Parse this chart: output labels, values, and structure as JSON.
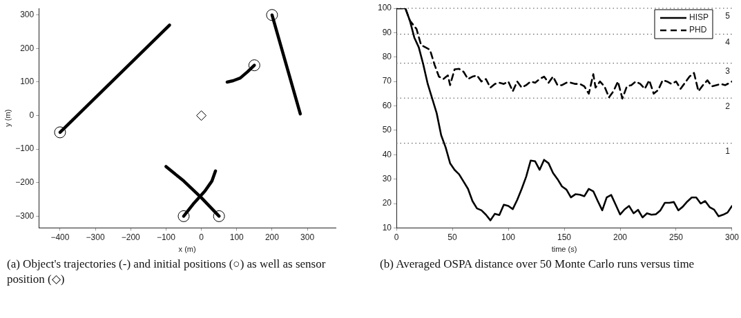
{
  "chart_data": [
    {
      "type": "line",
      "xlabel": "x (m)",
      "ylabel": "y (m)",
      "xlim": [
        -460,
        380
      ],
      "ylim": [
        -335,
        320
      ],
      "xticks": [
        -400,
        -300,
        -200,
        -100,
        0,
        100,
        200,
        300
      ],
      "yticks": [
        -300,
        -200,
        -100,
        0,
        100,
        200,
        300
      ],
      "grid": false,
      "legend": false,
      "marker": "none",
      "line_style": "solid",
      "annotations": [
        "(a) Object's trajectories (-) and initial positions (○) as well as sensor position (◇)"
      ],
      "series": [
        {
          "color": "#000000",
          "x": [
            -400,
            -90
          ],
          "values": [
            -50,
            270
          ]
        },
        {
          "color": "#000000",
          "x": [
            200,
            280
          ],
          "values": [
            300,
            5
          ]
        },
        {
          "color": "#000000",
          "x": [
            150,
            130,
            110,
            90,
            73
          ],
          "values": [
            150,
            130,
            112,
            104,
            100
          ]
        },
        {
          "color": "#000000",
          "x": [
            -50,
            -20,
            10,
            30,
            40
          ],
          "values": [
            -300,
            -260,
            -225,
            -195,
            -165
          ]
        },
        {
          "color": "#000000",
          "x": [
            50,
            0,
            -50,
            -100
          ],
          "values": [
            -300,
            -245,
            -195,
            -152
          ]
        },
        {
          "type": "scatter",
          "marker": "circle",
          "color": "#000000",
          "x": [
            -400,
            200,
            150,
            -50,
            50
          ],
          "values": [
            -50,
            300,
            150,
            -300,
            -300
          ]
        },
        {
          "type": "scatter",
          "marker": "diamond",
          "color": "#000000",
          "x": [
            0
          ],
          "values": [
            0
          ]
        }
      ]
    },
    {
      "type": "line",
      "xlabel": "time (s)",
      "xlim": [
        0,
        300
      ],
      "ylim": [
        10,
        100
      ],
      "xticks": [
        0,
        50,
        100,
        150,
        200,
        250,
        300
      ],
      "yticks": [
        10,
        20,
        30,
        40,
        50,
        60,
        70,
        80,
        90,
        100
      ],
      "grid": false,
      "legend": "top right",
      "marker": "none",
      "annotations": [
        "(b) Averaged OSPA distance over 50 Monte Carlo runs versus time",
        {
          "text": "1",
          "y": 44.7
        },
        {
          "text": "2",
          "y": 63.2
        },
        {
          "text": "3",
          "y": 77.5
        },
        {
          "text": "4",
          "y": 89.4
        },
        {
          "text": "5",
          "y": 100
        }
      ],
      "ref_lines": [
        {
          "axis": "y",
          "value": 44.7,
          "color": "#444444",
          "line_style": "dotted"
        },
        {
          "axis": "y",
          "value": 63.2,
          "color": "#444444",
          "line_style": "dotted"
        },
        {
          "axis": "y",
          "value": 77.5,
          "color": "#444444",
          "line_style": "dotted"
        },
        {
          "axis": "y",
          "value": 89.4,
          "color": "#444444",
          "line_style": "dotted"
        },
        {
          "axis": "y",
          "value": 100,
          "color": "#444444",
          "line_style": "dotted"
        }
      ],
      "series": [
        {
          "name": "HISP",
          "color": "#000000",
          "line_style": "solid",
          "x": [
            0,
            8,
            12,
            16,
            20,
            24,
            28,
            32,
            36,
            40,
            44,
            48,
            52,
            56,
            60,
            64,
            68,
            72,
            76,
            80,
            84,
            88,
            92,
            96,
            100,
            104,
            108,
            112,
            116,
            120,
            124,
            128,
            132,
            136,
            140,
            144,
            148,
            152,
            156,
            160,
            164,
            168,
            172,
            176,
            180,
            184,
            188,
            192,
            196,
            200,
            204,
            208,
            212,
            216,
            220,
            224,
            228,
            232,
            236,
            240,
            244,
            248,
            252,
            256,
            260,
            264,
            268,
            272,
            276,
            280,
            284,
            288,
            292,
            296,
            300
          ],
          "values": [
            100,
            100,
            95,
            88,
            84,
            77,
            69,
            63,
            57,
            48,
            43,
            36.5,
            33.8,
            32,
            29,
            26,
            21,
            18,
            17.2,
            15.4,
            13.1,
            15.8,
            15.3,
            19.5,
            19,
            17.7,
            21.5,
            26,
            31,
            37.6,
            37.3,
            33.8,
            37.9,
            36.5,
            32.5,
            30,
            27,
            25.7,
            22.5,
            23.8,
            23.6,
            23,
            26,
            25,
            21,
            17.2,
            22.5,
            23.5,
            19.5,
            15.5,
            17.6,
            19,
            16,
            17.4,
            14.3,
            16,
            15.4,
            15.6,
            17.2,
            20.3,
            20.3,
            20.6,
            17.2,
            18.7,
            20.8,
            22.5,
            22.5,
            20,
            21,
            18.5,
            17.5,
            14.8,
            15.4,
            16.3,
            19
          ]
        },
        {
          "name": "PHD",
          "color": "#000000",
          "line_style": "dashed",
          "x": [
            0,
            8,
            12,
            18,
            22,
            26,
            30,
            34,
            38,
            42,
            46,
            48,
            52,
            56,
            60,
            64,
            68,
            72,
            76,
            80,
            84,
            88,
            92,
            96,
            100,
            104,
            108,
            112,
            116,
            120,
            124,
            128,
            132,
            136,
            140,
            144,
            148,
            152,
            156,
            160,
            164,
            168,
            172,
            176,
            178,
            182,
            186,
            190,
            194,
            198,
            202,
            206,
            210,
            214,
            218,
            222,
            226,
            230,
            234,
            238,
            242,
            246,
            250,
            254,
            258,
            262,
            266,
            270,
            274,
            278,
            282,
            286,
            290,
            294,
            300
          ],
          "values": [
            100,
            100,
            95,
            91.5,
            85,
            84,
            83,
            77,
            72,
            71,
            72.5,
            68.5,
            75,
            75.2,
            74,
            71,
            72,
            72.5,
            70,
            71,
            67.5,
            69,
            69.5,
            69,
            70,
            66,
            70,
            67.5,
            68.5,
            70,
            69.5,
            71,
            72,
            69.5,
            72,
            68.5,
            68.5,
            69.5,
            69.5,
            69,
            69,
            68,
            65,
            73,
            67.5,
            70,
            68,
            63.5,
            66,
            70,
            63,
            68,
            68.5,
            70,
            69,
            67,
            70.5,
            65,
            66.5,
            70.5,
            70,
            69,
            70,
            67,
            69.5,
            72,
            73.5,
            66,
            68.5,
            70.5,
            68,
            68.5,
            69,
            68.5,
            70
          ]
        }
      ]
    }
  ]
}
